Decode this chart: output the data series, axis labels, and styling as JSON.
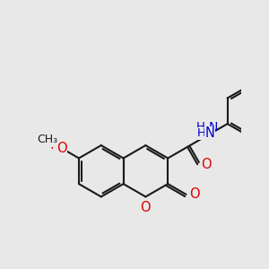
{
  "bg_color": "#e8e8e8",
  "bond_color": "#1a1a1a",
  "oxygen_color": "#dd0000",
  "nitrogen_color": "#0000cc",
  "chlorine_color": "#00aa00",
  "bond_width": 1.5,
  "dbo": 0.055,
  "figsize": [
    3.0,
    3.0
  ],
  "dpi": 100,
  "xlim": [
    0.2,
    5.2
  ],
  "ylim": [
    0.8,
    5.8
  ]
}
